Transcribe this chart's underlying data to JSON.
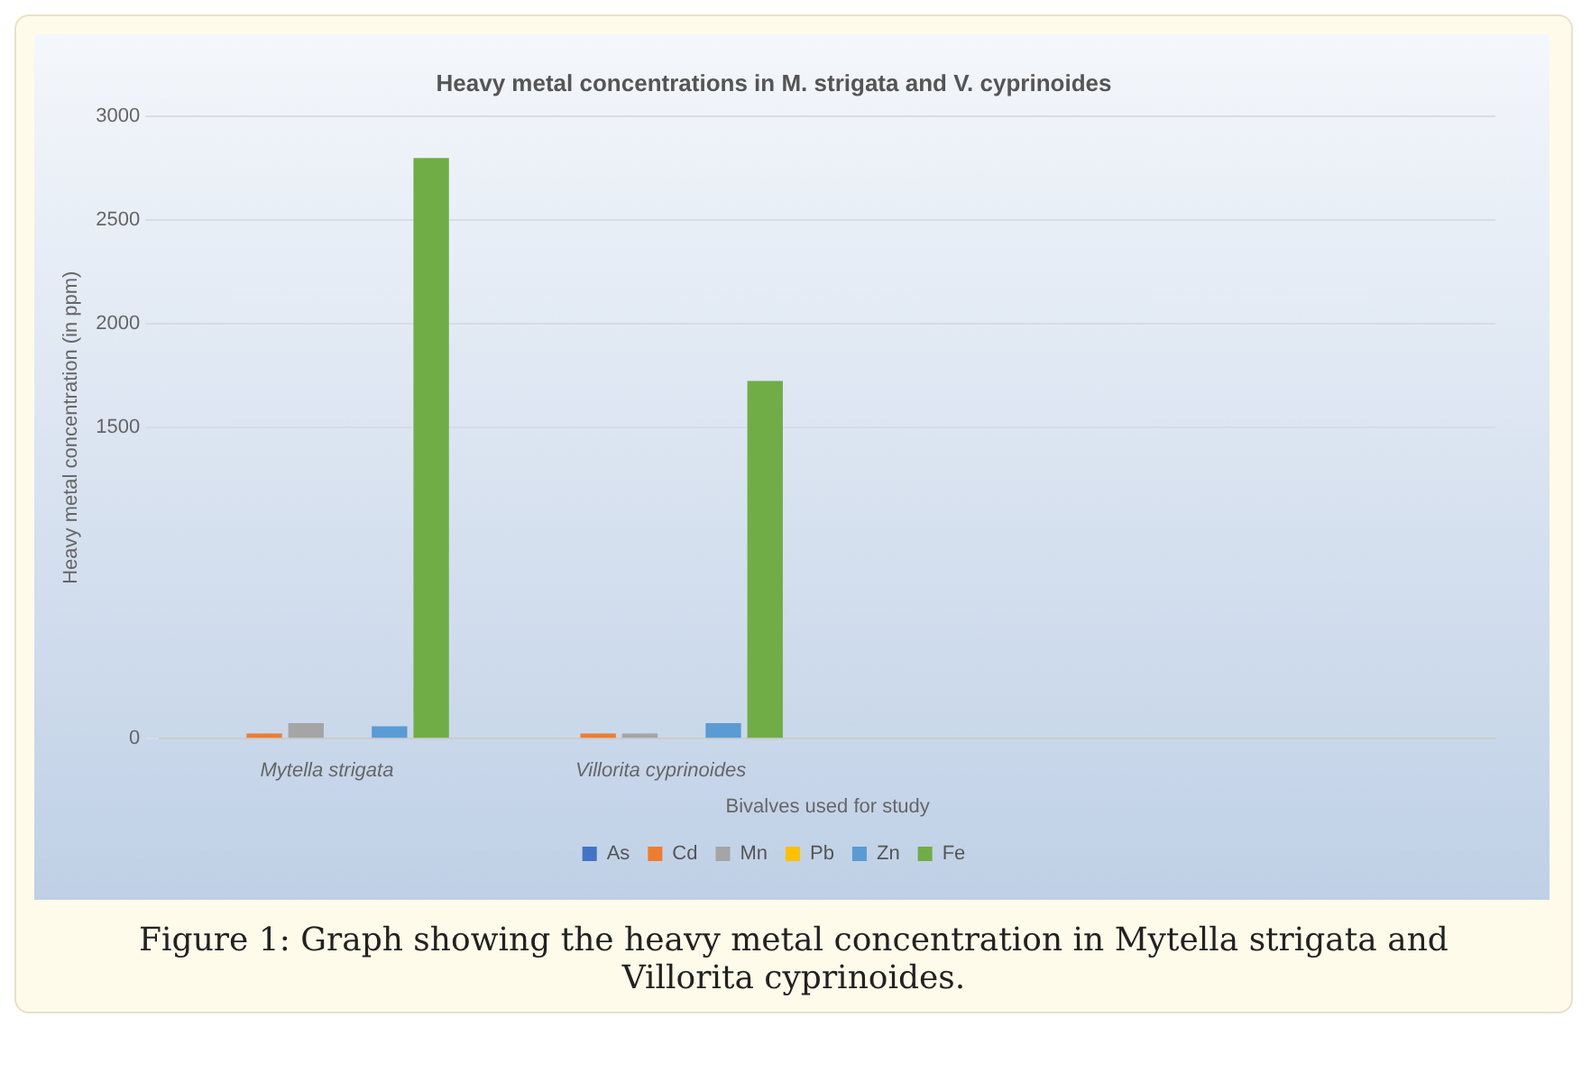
{
  "chart_data": {
    "type": "bar",
    "title": "Heavy metal concentrations in M. strigata and V. cyprinoides",
    "ylabel": "Heavy metal concentration (in ppm)",
    "xlabel": "Bivalves used for study",
    "categories": [
      "Mytella strigata",
      "Villorita cyprinoides",
      null,
      null
    ],
    "series": [
      {
        "name": "As",
        "color": "#4472c4",
        "values": [
          0,
          0,
          null,
          null
        ]
      },
      {
        "name": "Cd",
        "color": "#ed7d31",
        "values": [
          25,
          25,
          null,
          null
        ]
      },
      {
        "name": "Mn",
        "color": "#a5a5a5",
        "values": [
          75,
          25,
          null,
          null
        ]
      },
      {
        "name": "Pb",
        "color": "#ffc000",
        "values": [
          0,
          0,
          null,
          null
        ]
      },
      {
        "name": "Zn",
        "color": "#5b9bd5",
        "values": [
          60,
          75,
          null,
          null
        ]
      },
      {
        "name": "Fe",
        "color": "#70ad47",
        "values": [
          2800,
          1725,
          null,
          null
        ]
      }
    ],
    "ylim": [
      0,
      3000
    ],
    "yticks": [
      0,
      1500,
      2000,
      2500,
      3000
    ],
    "grid": "y",
    "legend": "bottom",
    "annotations": [
      "Figure 1: Graph showing the heavy metal concentration in Mytella strigata and Villorita cyprinoides."
    ]
  }
}
